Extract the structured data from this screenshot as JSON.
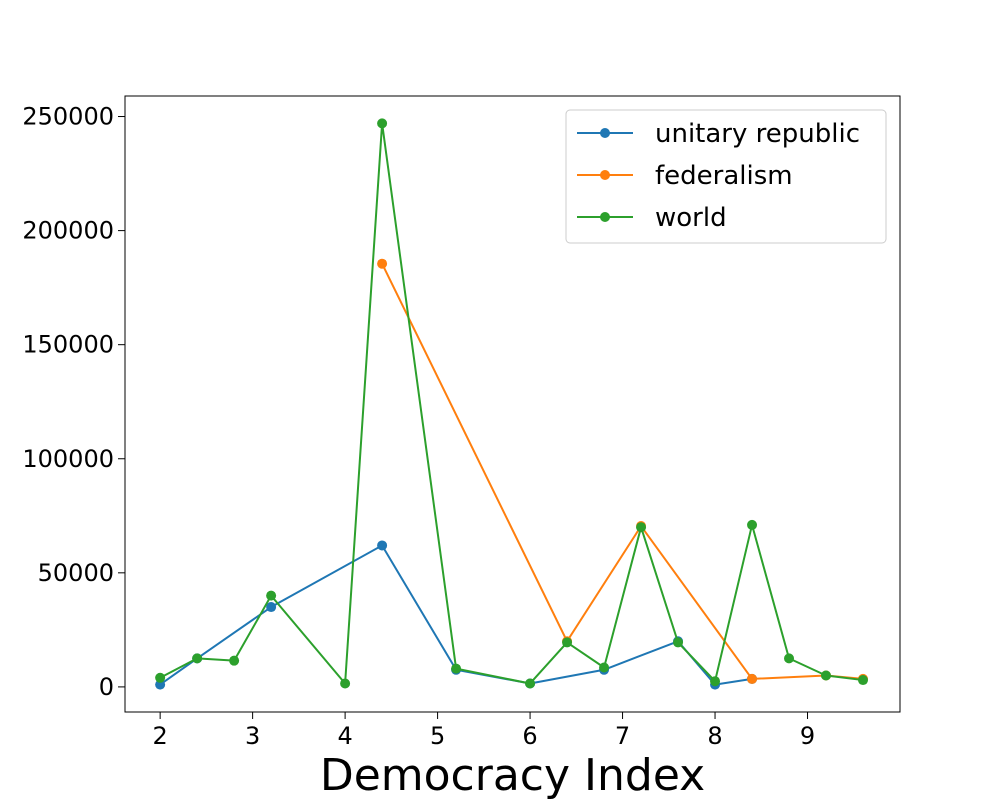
{
  "chart_data": {
    "type": "line",
    "xlabel": "Democracy Index",
    "ylabel": "",
    "title": "",
    "xlim": [
      1.62,
      10.0
    ],
    "ylim": [
      -11000,
      259000
    ],
    "xticks": [
      2,
      3,
      4,
      5,
      6,
      7,
      8,
      9
    ],
    "yticks": [
      0,
      50000,
      100000,
      150000,
      200000,
      250000
    ],
    "grid": false,
    "legend_position": "top-right",
    "series": [
      {
        "name": "unitary republic",
        "color": "#1f77b4",
        "points": [
          [
            2.0,
            1000
          ],
          [
            2.4,
            12500
          ],
          [
            3.2,
            35000
          ],
          [
            4.4,
            62000
          ],
          [
            5.2,
            7500
          ],
          [
            6.0,
            1500
          ],
          [
            6.8,
            7500
          ],
          [
            7.6,
            20000
          ],
          [
            8.0,
            1000
          ],
          [
            8.4,
            3500
          ]
        ]
      },
      {
        "name": "federalism",
        "color": "#ff7f0e",
        "points": [
          [
            4.4,
            185500
          ],
          [
            6.4,
            20000
          ],
          [
            7.2,
            70500
          ],
          [
            8.4,
            3500
          ],
          [
            9.2,
            5000
          ],
          [
            9.6,
            3500
          ]
        ]
      },
      {
        "name": "world",
        "color": "#2ca02c",
        "points": [
          [
            2.0,
            4000
          ],
          [
            2.4,
            12500
          ],
          [
            2.8,
            11500
          ],
          [
            3.2,
            40000
          ],
          [
            4.0,
            1500
          ],
          [
            4.4,
            247000
          ],
          [
            5.2,
            8000
          ],
          [
            6.0,
            1500
          ],
          [
            6.4,
            19500
          ],
          [
            6.8,
            8500
          ],
          [
            7.2,
            70000
          ],
          [
            7.6,
            19500
          ],
          [
            8.0,
            2500
          ],
          [
            8.4,
            71000
          ],
          [
            8.8,
            12500
          ],
          [
            9.2,
            5000
          ],
          [
            9.6,
            3000
          ]
        ]
      }
    ]
  }
}
